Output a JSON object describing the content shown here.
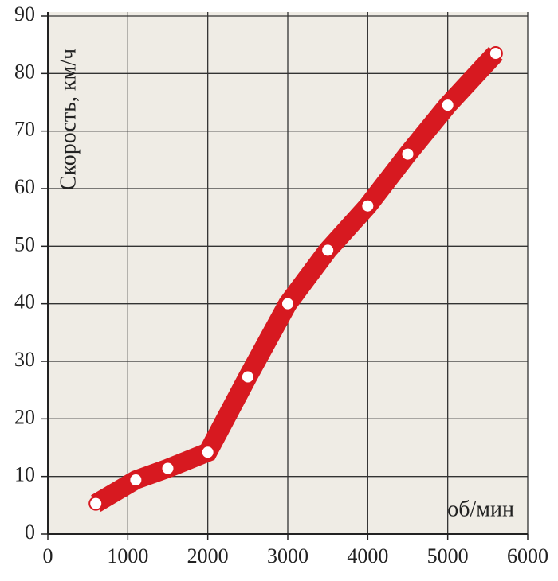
{
  "chart_data": {
    "type": "line",
    "y_label": "Скорость, км/ч",
    "x_label": "об/мин",
    "x": [
      600,
      1100,
      1500,
      2000,
      2500,
      3000,
      3500,
      4000,
      4500,
      5000,
      5600
    ],
    "series": [
      {
        "color": "#d71920",
        "values": [
          5.3,
          9.4,
          11.4,
          14.2,
          27.3,
          40,
          49.3,
          57,
          66,
          74.5,
          83.5
        ]
      }
    ],
    "xlim": [
      0,
      6000
    ],
    "xticks": [
      0,
      1000,
      2000,
      3000,
      4000,
      5000,
      6000
    ],
    "ylim": [
      0,
      90
    ],
    "yticks": [
      0,
      10,
      20,
      30,
      40,
      50,
      60,
      70,
      80,
      90
    ],
    "grid": true
  }
}
